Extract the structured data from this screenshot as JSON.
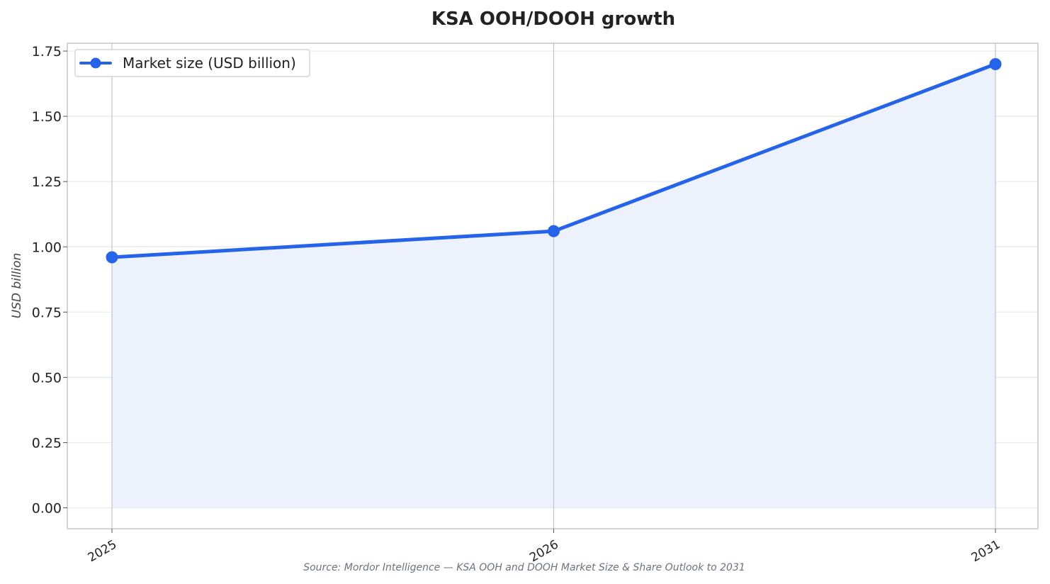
{
  "chart_data": {
    "type": "area",
    "title": "KSA OOH/DOOH growth",
    "xlabel": "",
    "ylabel": "USD billion",
    "categories": [
      "2025",
      "2026",
      "2031"
    ],
    "series": [
      {
        "name": "Market size (USD billion)",
        "values": [
          0.96,
          1.06,
          1.7
        ],
        "color": "#2563eb",
        "fill": "#ecf1fc"
      }
    ],
    "ylim": [
      -0.08,
      1.78
    ],
    "yticks": [
      0.0,
      0.25,
      0.5,
      0.75,
      1.0,
      1.25,
      1.5,
      1.75
    ],
    "ytick_labels": [
      "0.00",
      "0.25",
      "0.50",
      "0.75",
      "1.00",
      "1.25",
      "1.50",
      "1.75"
    ],
    "grid": true,
    "legend_position": "upper-left",
    "source": "Source: Mordor Intelligence — KSA OOH and DOOH Market Size & Share Outlook to 2031"
  }
}
